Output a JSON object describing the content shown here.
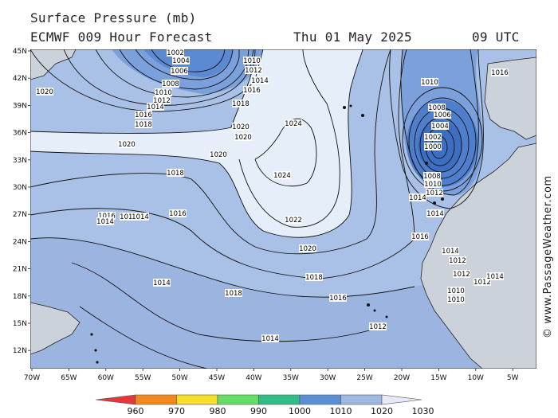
{
  "header": {
    "title": "Surface Pressure (mb)",
    "model": "ECMWF 009 Hour Forecast",
    "date": "Thu 01 May 2025",
    "time": "09 UTC"
  },
  "map": {
    "lat_labels": [
      "45N",
      "42N",
      "39N",
      "36N",
      "33N",
      "30N",
      "27N",
      "24N",
      "21N",
      "18N",
      "15N",
      "12N"
    ],
    "lon_labels": [
      "70W",
      "65W",
      "60W",
      "55W",
      "50W",
      "45W",
      "40W",
      "35W",
      "30W",
      "25W",
      "20W",
      "15W",
      "10W",
      "5W"
    ],
    "isobar_labels": [
      {
        "t": "1002"
      },
      {
        "t": "1004"
      },
      {
        "t": "1006"
      },
      {
        "t": "1008"
      },
      {
        "t": "1010"
      },
      {
        "t": "1012"
      },
      {
        "t": "1014"
      },
      {
        "t": "1016"
      },
      {
        "t": "1018"
      },
      {
        "t": "1020"
      },
      {
        "t": "1010"
      },
      {
        "t": "1012"
      },
      {
        "t": "1014"
      },
      {
        "t": "1016"
      },
      {
        "t": "1018"
      },
      {
        "t": "1020"
      },
      {
        "t": "1020"
      },
      {
        "t": "1020"
      },
      {
        "t": "1020"
      },
      {
        "t": "1018"
      },
      {
        "t": "1016"
      },
      {
        "t": "1016"
      },
      {
        "t": "1014"
      },
      {
        "t": "1014"
      },
      {
        "t": "1014"
      },
      {
        "t": "1024"
      },
      {
        "t": "1024"
      },
      {
        "t": "1022"
      },
      {
        "t": "1020"
      },
      {
        "t": "1018"
      },
      {
        "t": "1018"
      },
      {
        "t": "1016"
      },
      {
        "t": "1014"
      },
      {
        "t": "1014"
      },
      {
        "t": "1012"
      },
      {
        "t": "1010"
      },
      {
        "t": "1008"
      },
      {
        "t": "1006"
      },
      {
        "t": "1004"
      },
      {
        "t": "1002"
      },
      {
        "t": "1000"
      },
      {
        "t": "1008"
      },
      {
        "t": "1010"
      },
      {
        "t": "1012"
      },
      {
        "t": "1014"
      },
      {
        "t": "1014"
      },
      {
        "t": "1016"
      },
      {
        "t": "1014"
      },
      {
        "t": "1012"
      },
      {
        "t": "1012"
      },
      {
        "t": "1010"
      },
      {
        "t": "1010"
      },
      {
        "t": "1012"
      },
      {
        "t": "1014"
      },
      {
        "t": "1016"
      }
    ]
  },
  "colorbar": {
    "values": [
      "960",
      "970",
      "980",
      "990",
      "1000",
      "1010",
      "1020",
      "1030"
    ],
    "colors": [
      "#e8373b",
      "#f08a1e",
      "#f4e02a",
      "#66dd66",
      "#33bb88",
      "#5a8fd6",
      "#9fb9e0",
      "#e4ebf6"
    ]
  },
  "credit": "© www.PassageWeather.com",
  "palette": {
    "fill_low": "#4f7fcc",
    "fill_1010": "#7ba0dc",
    "fill_1020": "#a9c1e6",
    "fill_high": "#e6eef9",
    "land": "#cdd3dc",
    "isobar": "#111111"
  }
}
